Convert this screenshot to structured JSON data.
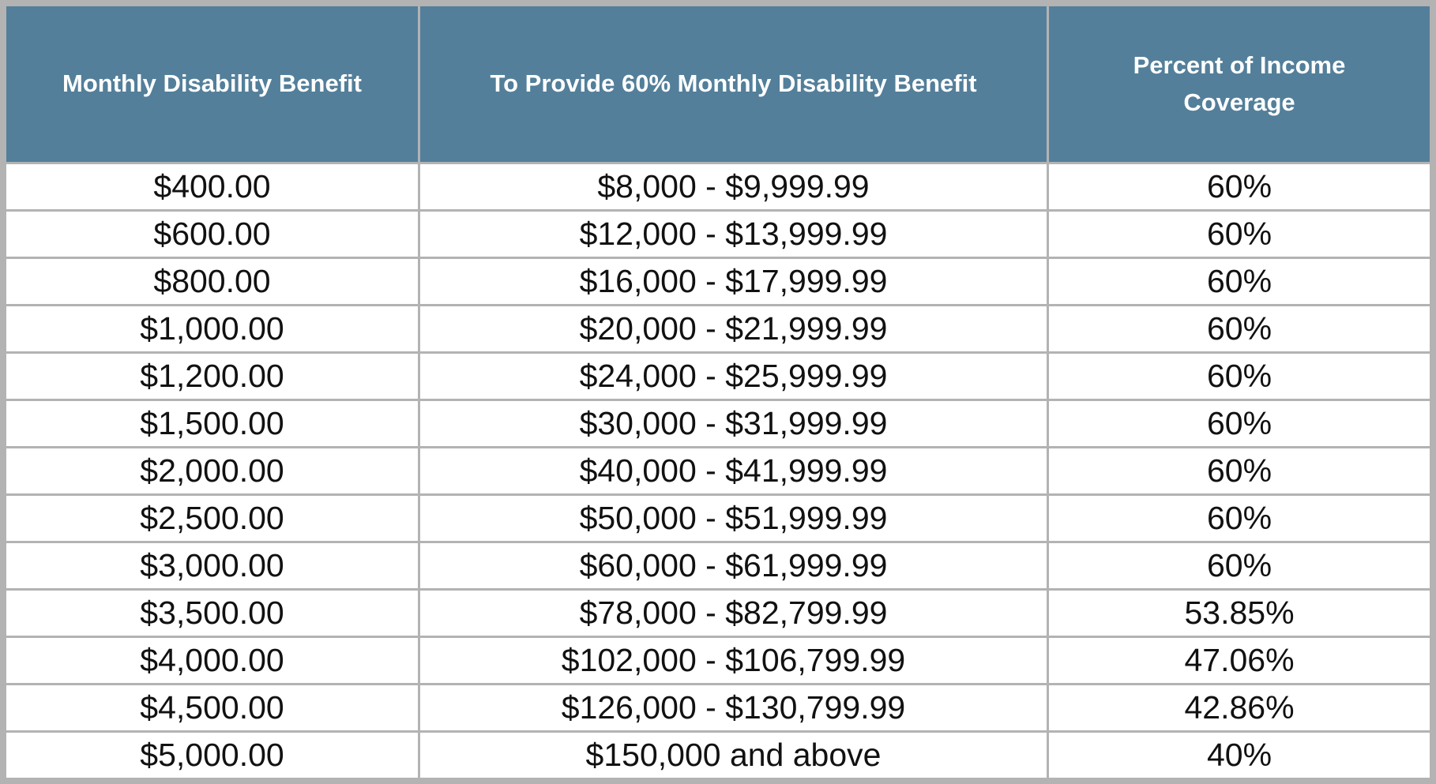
{
  "table": {
    "header": [
      "Monthly Disability Benefit",
      "To Provide 60% Monthly Disability Benefit",
      "Percent of Income Coverage"
    ],
    "rows": [
      [
        "$400.00",
        "$8,000 - $9,999.99",
        "60%"
      ],
      [
        "$600.00",
        "$12,000 - $13,999.99",
        "60%"
      ],
      [
        "$800.00",
        "$16,000 - $17,999.99",
        "60%"
      ],
      [
        "$1,000.00",
        "$20,000 - $21,999.99",
        "60%"
      ],
      [
        "$1,200.00",
        "$24,000 - $25,999.99",
        "60%"
      ],
      [
        "$1,500.00",
        "$30,000 - $31,999.99",
        "60%"
      ],
      [
        "$2,000.00",
        "$40,000 - $41,999.99",
        "60%"
      ],
      [
        "$2,500.00",
        "$50,000 - $51,999.99",
        "60%"
      ],
      [
        "$3,000.00",
        "$60,000 - $61,999.99",
        "60%"
      ],
      [
        "$3,500.00",
        "$78,000 - $82,799.99",
        "53.85%"
      ],
      [
        "$4,000.00",
        "$102,000 - $106,799.99",
        "47.06%"
      ],
      [
        "$4,500.00",
        "$126,000 - $130,799.99",
        "42.86%"
      ],
      [
        "$5,000.00",
        "$150,000 and above",
        "40%"
      ]
    ]
  }
}
